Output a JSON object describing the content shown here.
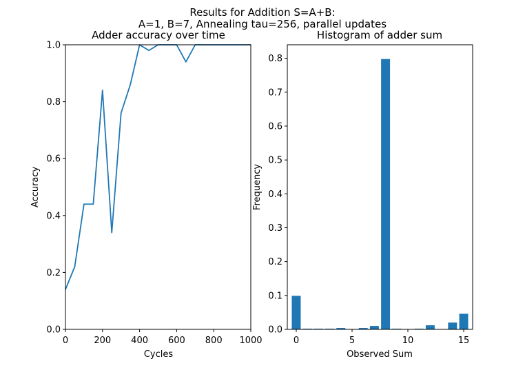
{
  "figure": {
    "suptitle_line1": "Results for Addition S=A+B:",
    "suptitle_line2": "A=1, B=7, Annealing tau=256, parallel updates"
  },
  "chart_data": [
    {
      "type": "line",
      "title": "Adder accuracy over time",
      "xlabel": "Cycles",
      "ylabel": "Accuracy",
      "xlim": [
        0,
        1000
      ],
      "ylim": [
        0,
        1.0
      ],
      "xticks": [
        "0",
        "200",
        "400",
        "600",
        "800",
        "1000"
      ],
      "yticks": [
        "0.0",
        "0.2",
        "0.4",
        "0.6",
        "0.8",
        "1.0"
      ],
      "grid": false,
      "color": "#1f77b4",
      "x": [
        0,
        50,
        100,
        150,
        200,
        250,
        300,
        350,
        400,
        450,
        500,
        550,
        600,
        650,
        700,
        750,
        800,
        850,
        900,
        950,
        1000
      ],
      "y": [
        0.14,
        0.22,
        0.44,
        0.44,
        0.84,
        0.34,
        0.76,
        0.86,
        1.0,
        0.98,
        1.0,
        1.0,
        1.0,
        0.94,
        1.0,
        1.0,
        1.0,
        1.0,
        1.0,
        1.0,
        1.0
      ]
    },
    {
      "type": "bar",
      "title": "Histogram of adder sum",
      "xlabel": "Observed Sum",
      "ylabel": "Frequency",
      "xlim": [
        -0.8,
        15.8
      ],
      "ylim": [
        0,
        0.84
      ],
      "xticks": [
        "0",
        "5",
        "10",
        "15"
      ],
      "yticks": [
        "0.0",
        "0.1",
        "0.2",
        "0.3",
        "0.4",
        "0.5",
        "0.6",
        "0.7",
        "0.8"
      ],
      "grid": false,
      "color": "#1f77b4",
      "categories": [
        0,
        1,
        2,
        3,
        4,
        5,
        6,
        7,
        8,
        9,
        10,
        11,
        12,
        13,
        14,
        15
      ],
      "values": [
        0.099,
        0.002,
        0.002,
        0.002,
        0.004,
        0.0,
        0.004,
        0.01,
        0.798,
        0.002,
        0.0,
        0.002,
        0.012,
        0.0,
        0.02,
        0.046
      ]
    }
  ]
}
